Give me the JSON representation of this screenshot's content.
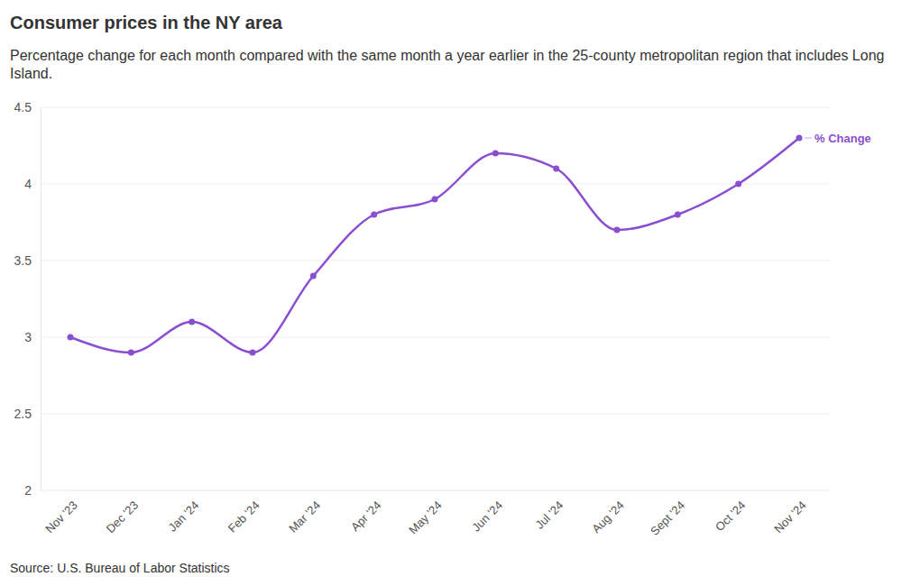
{
  "chart_data": {
    "type": "line",
    "title": "Consumer prices in the NY area",
    "subtitle": "Percentage change for each month compared with the same month a year earlier in the 25-county metropolitan region that includes Long Island.",
    "source": "Source: U.S. Bureau of Labor Statistics",
    "categories": [
      "Nov '23",
      "Dec '23",
      "Jan '24",
      "Feb '24",
      "Mar '24",
      "Apr '24",
      "May '24",
      "Jun '24",
      "Jul '24",
      "Aug '24",
      "Sept '24",
      "Oct '24",
      "Nov '24"
    ],
    "series": [
      {
        "name": "% Change",
        "color": "#8a4fd0",
        "marker": "circle",
        "values": [
          3.0,
          2.9,
          3.1,
          2.9,
          3.4,
          3.8,
          3.9,
          4.2,
          4.1,
          3.7,
          3.8,
          4.0,
          4.3
        ]
      }
    ],
    "ylim": [
      2,
      4.5
    ],
    "yticks": [
      2,
      2.5,
      3,
      3.5,
      4,
      4.5
    ],
    "grid": true
  }
}
